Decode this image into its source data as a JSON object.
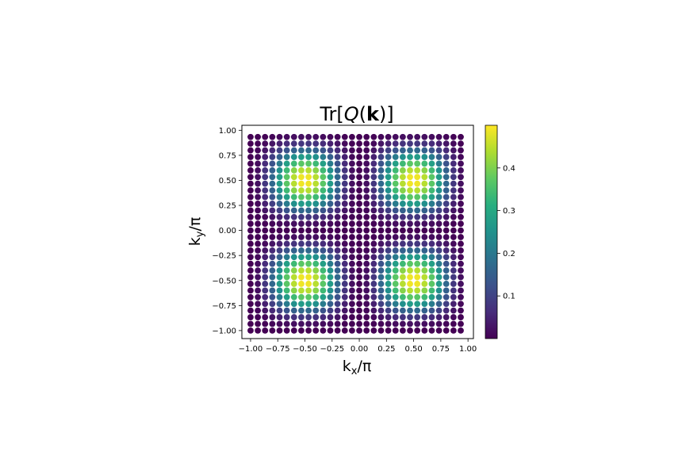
{
  "chart_data": {
    "type": "scatter",
    "title_parts": [
      "Tr[",
      "Q",
      "(",
      "k",
      ")]"
    ],
    "xlabel_main": "k",
    "xlabel_sub": "x",
    "xlabel_tail": "/π",
    "ylabel_main": "k",
    "ylabel_sub": "y",
    "ylabel_tail": "/π",
    "xlim": [
      -1.08,
      1.05
    ],
    "ylim": [
      -1.08,
      1.05
    ],
    "grid": false,
    "x_ticks": [
      -1.0,
      -0.75,
      -0.5,
      -0.25,
      0.0,
      0.25,
      0.5,
      0.75,
      1.0
    ],
    "x_tick_labels": [
      "−1.00",
      "−0.75",
      "−0.50",
      "−0.25",
      "0.00",
      "0.25",
      "0.50",
      "0.75",
      "1.00"
    ],
    "y_ticks": [
      1.0,
      0.75,
      0.5,
      0.25,
      0.0,
      -0.25,
      -0.5,
      -0.75,
      -1.0
    ],
    "y_tick_labels": [
      "1.00",
      "0.75",
      "0.50",
      "0.25",
      "0.00",
      "−0.25",
      "−0.50",
      "−0.75",
      "−1.00"
    ],
    "grid_points": {
      "n": 30,
      "start": -1.0,
      "stop": 0.9333,
      "value_formula": "0.5 * sin(pi*kx)^2 * sin(pi*ky)^2"
    },
    "colormap": "viridis",
    "colorbar": {
      "vmin": 0.0,
      "vmax": 0.5,
      "ticks": [
        0.1,
        0.2,
        0.3,
        0.4
      ],
      "tick_labels": [
        "0.1",
        "0.2",
        "0.3",
        "0.4"
      ]
    }
  }
}
